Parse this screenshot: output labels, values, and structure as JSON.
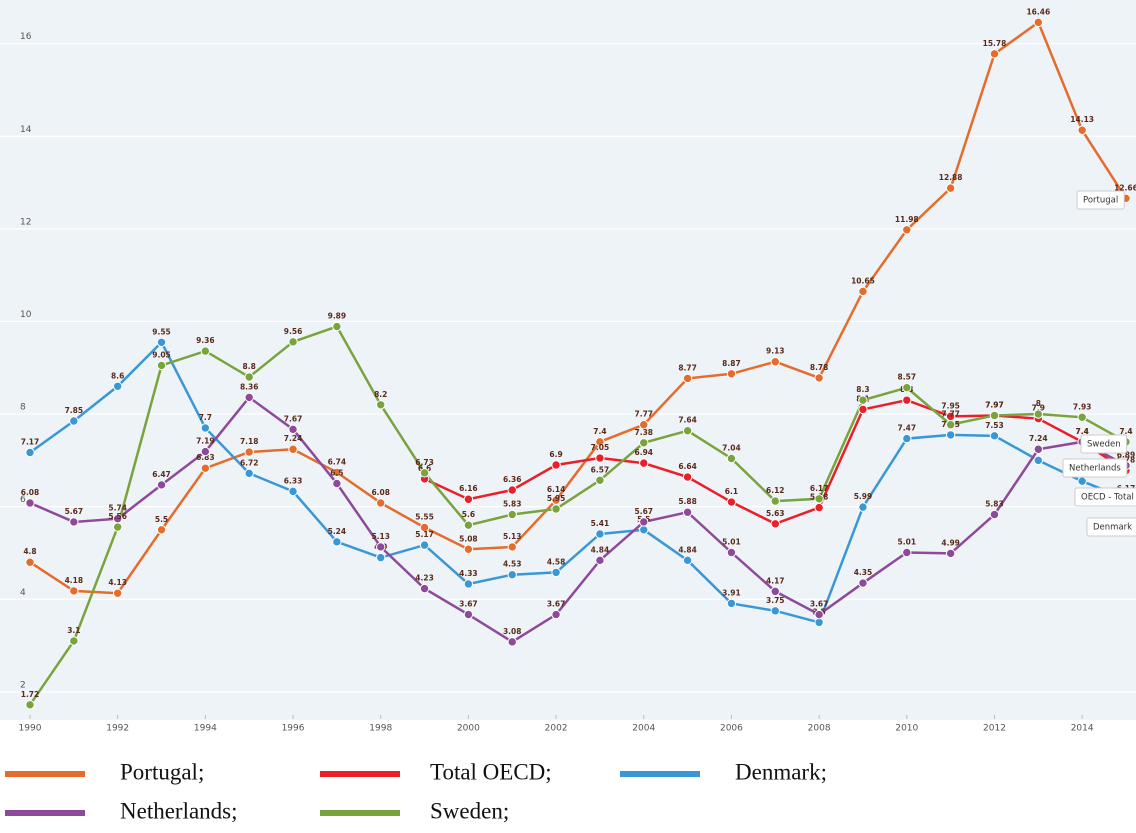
{
  "chart_data": {
    "type": "line",
    "x": [
      1990,
      1991,
      1992,
      1993,
      1994,
      1995,
      1996,
      1997,
      1998,
      1999,
      2000,
      2001,
      2002,
      2003,
      2004,
      2005,
      2006,
      2007,
      2008,
      2009,
      2010,
      2011,
      2012,
      2013,
      2014,
      2015
    ],
    "xlim": [
      1990,
      2015
    ],
    "xticks": [
      1990,
      1992,
      1994,
      1996,
      1998,
      2000,
      2002,
      2004,
      2006,
      2008,
      2010,
      2012,
      2014
    ],
    "ylim": [
      1.5,
      16.9
    ],
    "yticks": [
      2,
      4,
      6,
      8,
      10,
      12,
      14,
      16
    ],
    "grid": true,
    "series": [
      {
        "name": "Portugal;",
        "tag": "Portugal",
        "color": "#e46c2c",
        "values": [
          4.8,
          4.18,
          4.13,
          5.5,
          6.83,
          7.18,
          7.24,
          6.74,
          6.08,
          5.55,
          5.08,
          5.13,
          6.14,
          7.4,
          7.77,
          8.77,
          8.87,
          9.13,
          8.78,
          10.65,
          11.98,
          12.88,
          15.78,
          16.46,
          14.13,
          12.66
        ]
      },
      {
        "name": "Total OECD;",
        "tag": "OECD - Total",
        "color": "#e8202a",
        "values": [
          null,
          null,
          null,
          null,
          null,
          null,
          null,
          null,
          null,
          6.6,
          6.16,
          6.36,
          6.9,
          7.05,
          6.94,
          6.64,
          6.1,
          5.63,
          5.98,
          8.1,
          8.3,
          7.95,
          7.97,
          7.9,
          7.4,
          6.78
        ]
      },
      {
        "name": "Denmark;",
        "tag": "Denmark",
        "color": "#3a97d6",
        "values": [
          7.17,
          7.85,
          8.6,
          9.55,
          7.7,
          6.72,
          6.33,
          5.24,
          4.9,
          5.17,
          4.33,
          4.53,
          4.58,
          5.41,
          5.5,
          4.84,
          3.91,
          3.75,
          3.5,
          5.99,
          7.47,
          7.55,
          7.53,
          7.0,
          6.55,
          6.17
        ]
      },
      {
        "name": "Netherlands;",
        "tag": "Netherlands",
        "color": "#8e4a9a",
        "values": [
          6.08,
          5.67,
          5.74,
          6.47,
          7.19,
          8.36,
          7.67,
          6.5,
          5.13,
          4.23,
          3.67,
          3.08,
          3.67,
          4.84,
          5.67,
          5.88,
          5.01,
          4.17,
          3.67,
          4.35,
          5.01,
          4.99,
          5.83,
          7.24,
          7.4,
          6.89
        ]
      },
      {
        "name": "Sweden;",
        "tag": "Sweden",
        "color": "#79a33c",
        "values": [
          1.72,
          3.1,
          5.56,
          9.05,
          9.36,
          8.8,
          9.56,
          9.89,
          8.2,
          6.73,
          5.6,
          5.83,
          5.95,
          6.57,
          7.38,
          7.64,
          7.04,
          6.12,
          6.17,
          8.3,
          8.57,
          7.77,
          7.97,
          8,
          7.93,
          7.4
        ]
      }
    ]
  }
}
